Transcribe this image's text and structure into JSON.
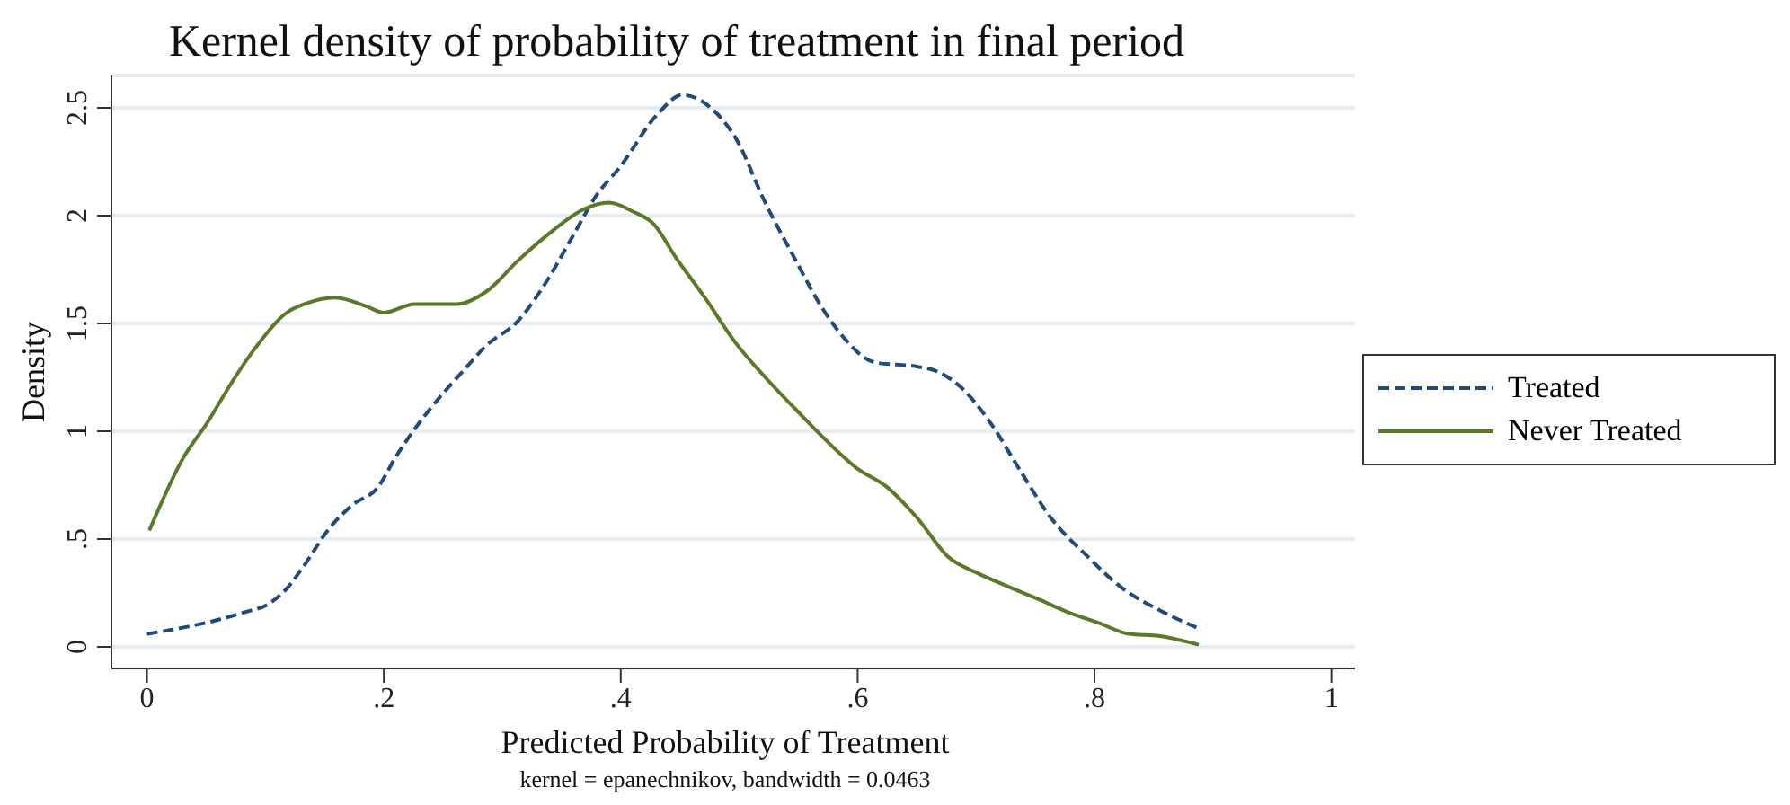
{
  "chart_data": {
    "type": "line",
    "title": "Kernel density of probability of treatment in final period",
    "xlabel": "Predicted Probability of Treatment",
    "ylabel": "Density",
    "annotations": [
      "kernel = epanechnikov, bandwidth = 0.0463"
    ],
    "series": [
      {
        "name": "Treated",
        "color": "#1f4a7a",
        "line_style": "dashed",
        "x": [
          0.0,
          0.031,
          0.056,
          0.082,
          0.103,
          0.118,
          0.133,
          0.154,
          0.174,
          0.195,
          0.21,
          0.226,
          0.246,
          0.267,
          0.287,
          0.313,
          0.338,
          0.359,
          0.379,
          0.4,
          0.431,
          0.452,
          0.476,
          0.497,
          0.522,
          0.548,
          0.568,
          0.589,
          0.614,
          0.65,
          0.666,
          0.686,
          0.712,
          0.737,
          0.763,
          0.794,
          0.824,
          0.855,
          0.886
        ],
        "values": [
          0.06,
          0.09,
          0.12,
          0.16,
          0.2,
          0.27,
          0.38,
          0.55,
          0.66,
          0.74,
          0.88,
          1.01,
          1.15,
          1.28,
          1.4,
          1.51,
          1.7,
          1.9,
          2.09,
          2.23,
          2.47,
          2.56,
          2.5,
          2.36,
          2.06,
          1.79,
          1.59,
          1.43,
          1.32,
          1.3,
          1.28,
          1.21,
          1.04,
          0.82,
          0.6,
          0.42,
          0.27,
          0.17,
          0.09
        ]
      },
      {
        "name": "Never Treated",
        "color": "#5a7a2a",
        "line_style": "solid",
        "x": [
          0.002,
          0.031,
          0.051,
          0.072,
          0.092,
          0.118,
          0.133,
          0.159,
          0.185,
          0.2,
          0.226,
          0.262,
          0.287,
          0.313,
          0.338,
          0.369,
          0.39,
          0.41,
          0.428,
          0.446,
          0.471,
          0.497,
          0.522,
          0.548,
          0.573,
          0.599,
          0.625,
          0.65,
          0.676,
          0.702,
          0.727,
          0.753,
          0.778,
          0.804,
          0.829,
          0.855,
          0.888
        ],
        "values": [
          0.54,
          0.88,
          1.04,
          1.23,
          1.39,
          1.55,
          1.59,
          1.62,
          1.58,
          1.55,
          1.59,
          1.59,
          1.65,
          1.79,
          1.91,
          2.03,
          2.06,
          2.02,
          1.96,
          1.81,
          1.62,
          1.41,
          1.25,
          1.1,
          0.96,
          0.83,
          0.74,
          0.6,
          0.42,
          0.34,
          0.28,
          0.22,
          0.16,
          0.11,
          0.06,
          0.05,
          0.01
        ]
      }
    ],
    "xlim": [
      -0.03,
      1.02
    ],
    "ylim": [
      -0.1,
      2.65
    ],
    "xticks": [
      0,
      {
        "value": 0.2,
        "label": ".2"
      },
      {
        "value": 0.4,
        "label": ".4"
      },
      {
        "value": 0.6,
        "label": ".6"
      },
      {
        "value": 0.8,
        "label": ".8"
      },
      1
    ],
    "yticks": [
      0,
      {
        "value": 0.5,
        "label": ".5"
      },
      1,
      1.5,
      2,
      2.5
    ],
    "grid": "y",
    "legend": "right"
  }
}
